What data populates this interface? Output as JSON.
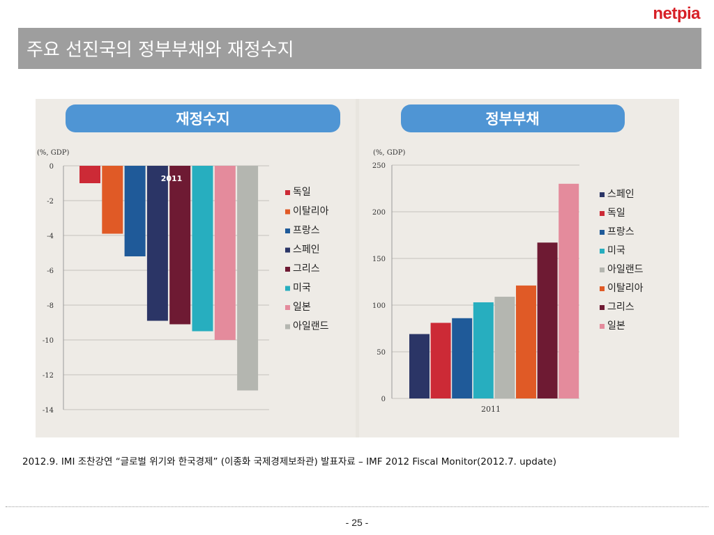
{
  "logo": "netpia",
  "title": "주요 선진국의 정부부채와 재정수지",
  "source": "2012.9. IMI 조찬강연 “글로벌 위기와 한국경제” (이종화 국제경제보좌관) 발표자료 –  IMF 2012 Fiscal Monitor(2012.7. update)",
  "page_number": "- 25 -",
  "chart_data": [
    {
      "type": "bar",
      "title": "재정수지",
      "ylabel": "(%, GDP)",
      "xlabel": "",
      "annotation": "2011",
      "ylim": [
        -14,
        0
      ],
      "yticks": [
        0,
        -2,
        -4,
        -6,
        -8,
        -10,
        -12,
        -14
      ],
      "grid": true,
      "legend_position": "right",
      "categories": [
        "독일",
        "이탈리아",
        "프랑스",
        "스페인",
        "그리스",
        "미국",
        "일본",
        "아일랜드"
      ],
      "values": [
        -1.0,
        -3.9,
        -5.2,
        -8.9,
        -9.1,
        -9.5,
        -10.0,
        -12.9
      ],
      "colors": [
        "#cc2a36",
        "#e05a26",
        "#1f5a99",
        "#2b3566",
        "#6e1a33",
        "#27aebf",
        "#e48b9c",
        "#b4b6b0"
      ]
    },
    {
      "type": "bar",
      "title": "정부부채",
      "ylabel": "(%, GDP)",
      "xlabel": "2011",
      "ylim": [
        0,
        250
      ],
      "yticks": [
        250,
        200,
        150,
        100,
        50,
        0
      ],
      "grid": true,
      "legend_position": "right",
      "categories": [
        "스페인",
        "독일",
        "프랑스",
        "미국",
        "아일랜드",
        "이탈리아",
        "그리스",
        "일본"
      ],
      "values": [
        69,
        81,
        86,
        103,
        109,
        121,
        167,
        230
      ],
      "colors": [
        "#2b3566",
        "#cc2a36",
        "#1f5a99",
        "#27aebf",
        "#b4b6b0",
        "#e05a26",
        "#6e1a33",
        "#e48b9c"
      ]
    }
  ]
}
